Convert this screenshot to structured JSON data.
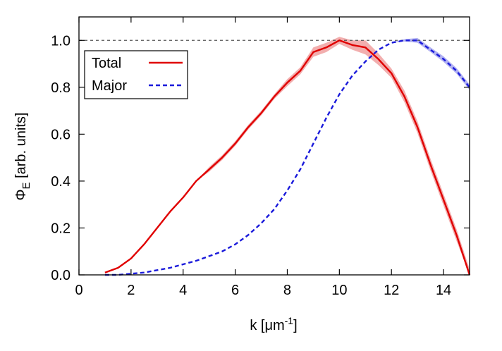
{
  "chart_data": {
    "type": "line",
    "xlabel": {
      "main": "k [μm",
      "sup": "-1",
      "tail": "]"
    },
    "ylabel": {
      "phi": "Φ",
      "sub": "E",
      "tail": " [arb. units]"
    },
    "xlim": [
      0,
      15
    ],
    "ylim": [
      0,
      1.1
    ],
    "xticks": [
      0,
      2,
      4,
      6,
      8,
      10,
      12,
      14
    ],
    "yticks": [
      0.0,
      0.2,
      0.4,
      0.6,
      0.8,
      1.0
    ],
    "xtick_labels": [
      "0",
      "2",
      "4",
      "6",
      "8",
      "10",
      "12",
      "14"
    ],
    "ytick_labels": [
      "0.0",
      "0.2",
      "0.4",
      "0.6",
      "0.8",
      "1.0"
    ],
    "reference_line": {
      "y": 1.0,
      "style": "dashed",
      "color": "#555555"
    },
    "grid": false,
    "legend_position": "top-left",
    "series": [
      {
        "name": "Total",
        "style": "solid",
        "color": "#e00000",
        "band_color": "#f0a0a0",
        "x": [
          1.0,
          1.5,
          2.0,
          2.5,
          3.0,
          3.5,
          4.0,
          4.5,
          5.0,
          5.5,
          6.0,
          6.5,
          7.0,
          7.5,
          8.0,
          8.5,
          9.0,
          9.5,
          10.0,
          10.5,
          11.0,
          11.5,
          12.0,
          12.5,
          13.0,
          13.5,
          14.0,
          14.5,
          15.0
        ],
        "y": [
          0.01,
          0.03,
          0.07,
          0.13,
          0.2,
          0.27,
          0.33,
          0.4,
          0.45,
          0.5,
          0.56,
          0.63,
          0.69,
          0.76,
          0.82,
          0.87,
          0.95,
          0.97,
          1.0,
          0.98,
          0.97,
          0.92,
          0.86,
          0.76,
          0.63,
          0.47,
          0.32,
          0.17,
          0.0
        ],
        "band": [
          0.0,
          0.0,
          0.0,
          0.0,
          0.0,
          0.0,
          0.0,
          0.0,
          0.01,
          0.01,
          0.01,
          0.01,
          0.01,
          0.01,
          0.015,
          0.015,
          0.02,
          0.02,
          0.015,
          0.02,
          0.03,
          0.025,
          0.02,
          0.025,
          0.025,
          0.025,
          0.025,
          0.025,
          0.025
        ]
      },
      {
        "name": "Major",
        "style": "dashed",
        "color": "#1a1adb",
        "band_color": "#a6a6f0",
        "x": [
          1.0,
          1.5,
          2.0,
          2.5,
          3.0,
          3.5,
          4.0,
          4.5,
          5.0,
          5.5,
          6.0,
          6.5,
          7.0,
          7.5,
          8.0,
          8.5,
          9.0,
          9.5,
          10.0,
          10.5,
          11.0,
          11.5,
          12.0,
          12.5,
          13.0,
          13.5,
          14.0,
          14.5,
          15.0
        ],
        "y": [
          0.0,
          0.0,
          0.005,
          0.01,
          0.02,
          0.03,
          0.045,
          0.06,
          0.08,
          0.1,
          0.13,
          0.17,
          0.22,
          0.28,
          0.36,
          0.45,
          0.56,
          0.67,
          0.77,
          0.85,
          0.91,
          0.96,
          0.99,
          1.0,
          1.0,
          0.96,
          0.92,
          0.87,
          0.8
        ],
        "band": [
          0.0,
          0.0,
          0.0,
          0.0,
          0.0,
          0.0,
          0.0,
          0.0,
          0.0,
          0.0,
          0.0,
          0.0,
          0.0,
          0.0,
          0.0,
          0.0,
          0.0,
          0.0,
          0.0,
          0.0,
          0.0,
          0.0,
          0.0,
          0.005,
          0.01,
          0.01,
          0.012,
          0.012,
          0.012
        ]
      }
    ]
  }
}
